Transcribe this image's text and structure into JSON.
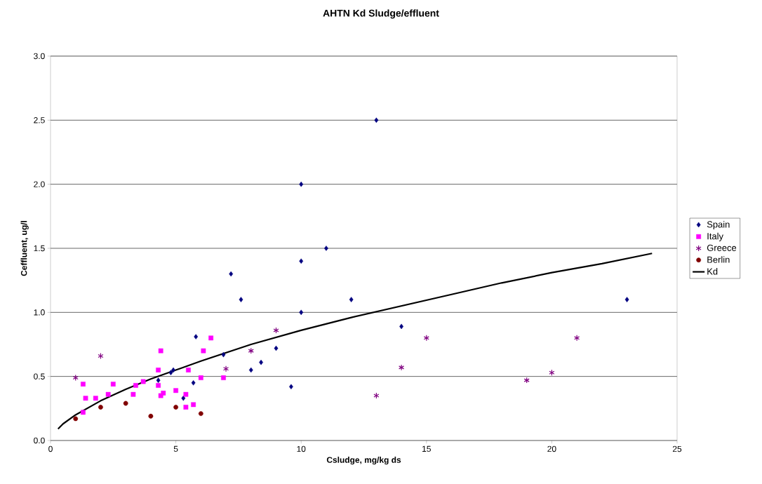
{
  "chart_data": {
    "type": "scatter",
    "title": "AHTN Kd Sludge/effluent",
    "xlabel": "Csludge, mg/kg ds",
    "ylabel": "Ceffluent, ug/l",
    "xlim": [
      0,
      25
    ],
    "xticks": [
      0,
      5,
      10,
      15,
      20,
      25
    ],
    "ylim": [
      0,
      3
    ],
    "yticks": [
      {
        "value": 0,
        "label": "0.0"
      },
      {
        "value": 0.5,
        "label": "0.5"
      },
      {
        "value": 1,
        "label": "1.0"
      },
      {
        "value": 1.5,
        "label": "1.5"
      },
      {
        "value": 2,
        "label": "2.0"
      },
      {
        "value": 2.5,
        "label": "2.5"
      },
      {
        "value": 3,
        "label": "3.0"
      }
    ],
    "grid": "y",
    "legend": "right",
    "series": [
      {
        "name": "Spain",
        "color": "#000080",
        "marker": "diamond",
        "x": [
          4.3,
          4.8,
          4.9,
          5.3,
          5.7,
          5.8,
          6.9,
          7.2,
          7.6,
          8.0,
          8.4,
          9.0,
          9.6,
          10,
          10,
          10,
          11,
          12,
          13,
          14,
          23
        ],
        "values": [
          0.47,
          0.53,
          0.55,
          0.33,
          0.45,
          0.81,
          0.67,
          1.3,
          1.1,
          0.55,
          0.61,
          0.72,
          0.42,
          2.0,
          1.4,
          1.0,
          1.5,
          1.1,
          2.5,
          0.89,
          1.1
        ]
      },
      {
        "name": "Italy",
        "color": "#ff00ff",
        "marker": "square",
        "x": [
          1.3,
          1.3,
          1.4,
          1.8,
          2.3,
          2.5,
          3.3,
          3.4,
          3.7,
          4.3,
          4.3,
          4.4,
          4.4,
          4.5,
          5.0,
          5.4,
          5.4,
          5.5,
          5.7,
          6.0,
          6.1,
          6.4,
          6.9
        ],
        "values": [
          0.22,
          0.44,
          0.33,
          0.33,
          0.36,
          0.44,
          0.36,
          0.43,
          0.46,
          0.43,
          0.55,
          0.7,
          0.35,
          0.37,
          0.39,
          0.26,
          0.36,
          0.55,
          0.28,
          0.49,
          0.7,
          0.8,
          0.49
        ]
      },
      {
        "name": "Greece",
        "color": "#800080",
        "marker": "cross",
        "x": [
          1,
          2,
          7,
          8,
          9,
          13,
          14,
          15,
          19,
          20,
          21
        ],
        "values": [
          0.49,
          0.66,
          0.56,
          0.7,
          0.86,
          0.35,
          0.57,
          0.8,
          0.47,
          0.53,
          0.8
        ]
      },
      {
        "name": "Berlin",
        "color": "#800000",
        "marker": "circle",
        "x": [
          1,
          2,
          3,
          4,
          5,
          6
        ],
        "values": [
          0.17,
          0.26,
          0.29,
          0.19,
          0.26,
          0.21
        ]
      },
      {
        "name": "Kd",
        "type": "line",
        "color": "#000000",
        "marker": "none",
        "line_style": "solid",
        "x": [
          0.3,
          0.5,
          1,
          2,
          3,
          4,
          5,
          6,
          8,
          10,
          12,
          14,
          16,
          18,
          20,
          22,
          24
        ],
        "values": [
          0.09,
          0.13,
          0.2,
          0.31,
          0.4,
          0.48,
          0.55,
          0.62,
          0.75,
          0.86,
          0.96,
          1.05,
          1.14,
          1.23,
          1.31,
          1.38,
          1.46
        ]
      }
    ]
  }
}
